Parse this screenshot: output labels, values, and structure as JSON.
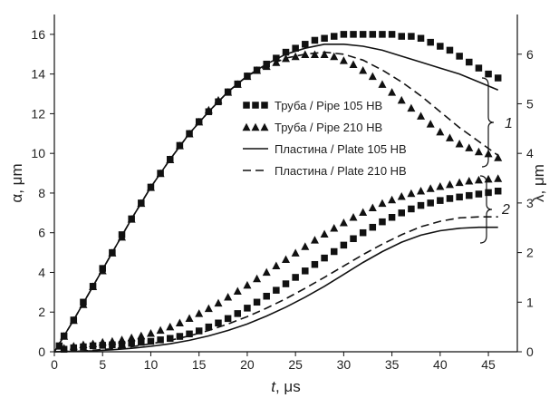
{
  "chart_data": {
    "type": "scatter",
    "xlabel_var": "t",
    "xlabel_unit": ", μs",
    "ylabel_left": "α, μm",
    "ylabel_right": "λ, μm",
    "xlim": [
      0,
      48
    ],
    "ylim_left": [
      0,
      17
    ],
    "ylim_right": [
      0,
      6.8
    ],
    "xticks": [
      0,
      5,
      10,
      15,
      20,
      25,
      30,
      35,
      40,
      45
    ],
    "yticks_left": [
      0,
      2,
      4,
      6,
      8,
      10,
      12,
      14,
      16
    ],
    "yticks_right": [
      0,
      1,
      2,
      3,
      4,
      5,
      6
    ],
    "grid": false,
    "legend_position": "center-right",
    "group_labels": [
      "1",
      "2"
    ],
    "series": [
      {
        "name": "Труба / Pipe 105 HB",
        "marker": "square",
        "group": "1",
        "axis": "left",
        "x": [
          0.5,
          1,
          2,
          3,
          4,
          5,
          6,
          7,
          8,
          9,
          10,
          11,
          12,
          13,
          14,
          15,
          16,
          17,
          18,
          19,
          20,
          21,
          22,
          23,
          24,
          25,
          26,
          27,
          28,
          29,
          30,
          31,
          32,
          33,
          34,
          35,
          36,
          37,
          38,
          39,
          40,
          41,
          42,
          43,
          44,
          45,
          46
        ],
        "values": [
          0.3,
          0.8,
          1.6,
          2.5,
          3.3,
          4.2,
          5.0,
          5.9,
          6.7,
          7.5,
          8.3,
          9.0,
          9.7,
          10.4,
          11.0,
          11.6,
          12.1,
          12.6,
          13.1,
          13.5,
          13.9,
          14.2,
          14.5,
          14.8,
          15.1,
          15.3,
          15.5,
          15.7,
          15.8,
          15.9,
          16.0,
          16.0,
          16.0,
          16.0,
          16.0,
          16.0,
          15.9,
          15.9,
          15.8,
          15.6,
          15.4,
          15.2,
          14.9,
          14.6,
          14.3,
          14.0,
          13.8
        ]
      },
      {
        "name": "Труба / Pipe 210 HB",
        "marker": "triangle",
        "group": "1",
        "axis": "left",
        "x": [
          0.5,
          1,
          2,
          3,
          4,
          5,
          6,
          7,
          8,
          9,
          10,
          11,
          12,
          13,
          14,
          15,
          16,
          17,
          18,
          19,
          20,
          21,
          22,
          23,
          24,
          25,
          26,
          27,
          28,
          29,
          30,
          31,
          32,
          33,
          34,
          35,
          36,
          37,
          38,
          39,
          40,
          41,
          42,
          43,
          44,
          45,
          46
        ],
        "values": [
          0.3,
          0.8,
          1.6,
          2.4,
          3.3,
          4.1,
          5.0,
          5.8,
          6.7,
          7.5,
          8.3,
          9.0,
          9.7,
          10.4,
          11.0,
          11.6,
          12.2,
          12.7,
          13.1,
          13.5,
          13.9,
          14.2,
          14.4,
          14.6,
          14.8,
          14.9,
          15.0,
          15.0,
          15.0,
          14.9,
          14.7,
          14.5,
          14.2,
          13.9,
          13.5,
          13.1,
          12.7,
          12.3,
          11.9,
          11.5,
          11.1,
          10.8,
          10.5,
          10.3,
          10.1,
          10.0,
          9.8
        ]
      },
      {
        "name": "Пластина / Plate 105 HB",
        "marker": "solid-line",
        "group": "1",
        "axis": "left",
        "x": [
          0,
          2,
          4,
          6,
          8,
          10,
          12,
          14,
          16,
          18,
          20,
          22,
          24,
          26,
          28,
          30,
          32,
          34,
          36,
          38,
          40,
          42,
          44,
          46
        ],
        "values": [
          0.0,
          1.6,
          3.3,
          5.0,
          6.7,
          8.3,
          9.7,
          11.0,
          12.1,
          13.1,
          13.9,
          14.5,
          15.0,
          15.3,
          15.5,
          15.5,
          15.4,
          15.2,
          14.9,
          14.6,
          14.3,
          14.0,
          13.6,
          13.2
        ]
      },
      {
        "name": "Пластина / Plate 210 HB",
        "marker": "dashed-line",
        "group": "1",
        "axis": "left",
        "x": [
          0,
          2,
          4,
          6,
          8,
          10,
          12,
          14,
          16,
          18,
          20,
          22,
          24,
          26,
          28,
          30,
          32,
          34,
          36,
          38,
          40,
          42,
          44,
          46
        ],
        "values": [
          0.0,
          1.6,
          3.3,
          5.0,
          6.7,
          8.3,
          9.7,
          11.0,
          12.1,
          13.1,
          13.9,
          14.4,
          14.8,
          15.0,
          15.1,
          15.0,
          14.7,
          14.2,
          13.6,
          12.9,
          12.1,
          11.3,
          10.6,
          9.9
        ]
      },
      {
        "name": "Труба / Pipe 105 HB",
        "marker": "square",
        "group": "2",
        "axis": "right",
        "x": [
          1,
          2,
          3,
          4,
          5,
          6,
          7,
          8,
          9,
          10,
          11,
          12,
          13,
          14,
          15,
          16,
          17,
          18,
          19,
          20,
          21,
          22,
          23,
          24,
          25,
          26,
          27,
          28,
          29,
          30,
          31,
          32,
          33,
          34,
          35,
          36,
          37,
          38,
          39,
          40,
          41,
          42,
          43,
          44,
          45,
          46
        ],
        "values": [
          0.05,
          0.08,
          0.1,
          0.12,
          0.13,
          0.14,
          0.15,
          0.17,
          0.19,
          0.21,
          0.24,
          0.27,
          0.31,
          0.36,
          0.42,
          0.5,
          0.58,
          0.67,
          0.77,
          0.88,
          1.0,
          1.12,
          1.24,
          1.37,
          1.5,
          1.63,
          1.76,
          1.89,
          2.02,
          2.15,
          2.28,
          2.4,
          2.51,
          2.62,
          2.71,
          2.8,
          2.88,
          2.95,
          3.0,
          3.05,
          3.09,
          3.12,
          3.15,
          3.18,
          3.21,
          3.24
        ]
      },
      {
        "name": "Труба / Pipe 210 HB",
        "marker": "triangle",
        "group": "2",
        "axis": "right",
        "x": [
          1,
          2,
          3,
          4,
          5,
          6,
          7,
          8,
          9,
          10,
          11,
          12,
          13,
          14,
          15,
          16,
          17,
          18,
          19,
          20,
          21,
          22,
          23,
          24,
          25,
          26,
          27,
          28,
          29,
          30,
          31,
          32,
          33,
          34,
          35,
          36,
          37,
          38,
          39,
          40,
          41,
          42,
          43,
          44,
          45,
          46
        ],
        "values": [
          0.08,
          0.12,
          0.15,
          0.17,
          0.2,
          0.22,
          0.25,
          0.29,
          0.33,
          0.38,
          0.44,
          0.51,
          0.59,
          0.68,
          0.78,
          0.88,
          0.99,
          1.11,
          1.23,
          1.35,
          1.48,
          1.61,
          1.74,
          1.87,
          2.0,
          2.13,
          2.26,
          2.38,
          2.5,
          2.61,
          2.72,
          2.82,
          2.91,
          3.0,
          3.07,
          3.14,
          3.2,
          3.25,
          3.3,
          3.34,
          3.38,
          3.42,
          3.45,
          3.47,
          3.49,
          3.5
        ]
      },
      {
        "name": "Пластина / Plate 105 HB",
        "marker": "solid-line",
        "group": "2",
        "axis": "right",
        "x": [
          0,
          2,
          4,
          6,
          8,
          10,
          12,
          14,
          16,
          18,
          20,
          22,
          24,
          26,
          28,
          30,
          32,
          34,
          36,
          38,
          40,
          42,
          44,
          46
        ],
        "values": [
          0.0,
          0.01,
          0.02,
          0.04,
          0.07,
          0.11,
          0.16,
          0.23,
          0.32,
          0.43,
          0.56,
          0.72,
          0.9,
          1.1,
          1.32,
          1.56,
          1.8,
          2.02,
          2.21,
          2.35,
          2.44,
          2.49,
          2.51,
          2.51
        ]
      },
      {
        "name": "Пластина / Plate 210 HB",
        "marker": "dashed-line",
        "group": "2",
        "axis": "right",
        "x": [
          0,
          2,
          4,
          6,
          8,
          10,
          12,
          14,
          16,
          18,
          20,
          22,
          24,
          26,
          28,
          30,
          32,
          34,
          36,
          38,
          40,
          42,
          44,
          46
        ],
        "values": [
          0.0,
          0.01,
          0.03,
          0.06,
          0.1,
          0.16,
          0.23,
          0.32,
          0.43,
          0.56,
          0.71,
          0.88,
          1.07,
          1.28,
          1.5,
          1.73,
          1.96,
          2.17,
          2.36,
          2.52,
          2.63,
          2.7,
          2.72,
          2.72
        ]
      }
    ],
    "legend": [
      {
        "label": "Труба / Pipe 105 HB",
        "marker": "square"
      },
      {
        "label": "Труба / Pipe 210 HB",
        "marker": "triangle"
      },
      {
        "label": "Пластина / Plate 105 HB",
        "marker": "solid-line"
      },
      {
        "label": "Пластина / Plate 210 HB",
        "marker": "dashed-line"
      }
    ],
    "colors": {
      "ink": "#111111",
      "background": "#ffffff"
    }
  }
}
